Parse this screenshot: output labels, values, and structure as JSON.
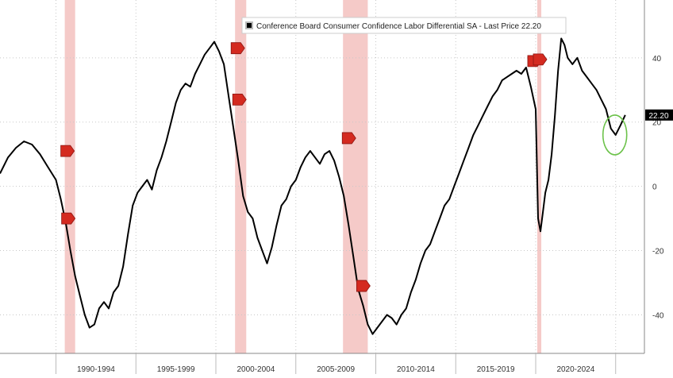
{
  "chart_data": {
    "type": "line",
    "legend": "Conference Board Consumer Confidence Labor Differential SA - Last Price 22.20",
    "last_price_label": "22.20",
    "y_ticks": [
      40,
      20,
      0,
      -20,
      -40
    ],
    "y_tick_labels": [
      "40",
      "20",
      "0",
      "-20",
      "-40"
    ],
    "ylim": [
      -52,
      58
    ],
    "xlim": [
      1986.5,
      2026.8
    ],
    "x_period_labels": [
      {
        "label": "1990-1994",
        "x": 1992.5
      },
      {
        "label": "1995-1999",
        "x": 1997.5
      },
      {
        "label": "2000-2004",
        "x": 2002.5
      },
      {
        "label": "2005-2009",
        "x": 2007.5
      },
      {
        "label": "2010-2014",
        "x": 2012.5
      },
      {
        "label": "2015-2019",
        "x": 2017.5
      },
      {
        "label": "2020-2024",
        "x": 2022.5
      }
    ],
    "x_separators": [
      1990,
      1995,
      2000,
      2005,
      2010,
      2015,
      2020,
      2025
    ],
    "recessions": [
      {
        "start": 1990.55,
        "end": 1991.2
      },
      {
        "start": 2001.2,
        "end": 2001.9
      },
      {
        "start": 2007.95,
        "end": 2009.5
      },
      {
        "start": 2020.1,
        "end": 2020.35
      }
    ],
    "series": [
      {
        "color": "#000000",
        "x": [
          1986.5,
          1987.0,
          1987.5,
          1988.0,
          1988.5,
          1989.0,
          1989.5,
          1990.0,
          1990.3,
          1990.6,
          1990.9,
          1991.2,
          1991.5,
          1991.8,
          1992.1,
          1992.4,
          1992.7,
          1993.0,
          1993.3,
          1993.6,
          1993.9,
          1994.2,
          1994.5,
          1994.8,
          1995.1,
          1995.4,
          1995.7,
          1996.0,
          1996.3,
          1996.6,
          1996.9,
          1997.2,
          1997.5,
          1997.8,
          1998.1,
          1998.4,
          1998.7,
          1999.0,
          1999.3,
          1999.6,
          1999.9,
          2000.2,
          2000.5,
          2000.8,
          2001.1,
          2001.4,
          2001.7,
          2002.0,
          2002.3,
          2002.6,
          2002.9,
          2003.2,
          2003.5,
          2003.8,
          2004.1,
          2004.4,
          2004.7,
          2005.0,
          2005.3,
          2005.6,
          2005.9,
          2006.2,
          2006.5,
          2006.8,
          2007.1,
          2007.4,
          2007.7,
          2008.0,
          2008.3,
          2008.6,
          2008.9,
          2009.2,
          2009.5,
          2009.8,
          2010.1,
          2010.4,
          2010.7,
          2011.0,
          2011.3,
          2011.6,
          2011.9,
          2012.2,
          2012.5,
          2012.8,
          2013.1,
          2013.4,
          2013.7,
          2014.0,
          2014.3,
          2014.6,
          2014.9,
          2015.2,
          2015.5,
          2015.8,
          2016.1,
          2016.4,
          2016.7,
          2017.0,
          2017.3,
          2017.6,
          2017.9,
          2018.2,
          2018.5,
          2018.8,
          2019.1,
          2019.4,
          2019.7,
          2020.0,
          2020.15,
          2020.3,
          2020.45,
          2020.6,
          2020.8,
          2021.0,
          2021.2,
          2021.4,
          2021.6,
          2021.8,
          2022.0,
          2022.3,
          2022.6,
          2022.9,
          2023.2,
          2023.5,
          2023.8,
          2024.1,
          2024.4,
          2024.7,
          2025.0,
          2025.3,
          2025.6
        ],
        "y": [
          4,
          9,
          12,
          14,
          13,
          10,
          6,
          2,
          -4,
          -11,
          -20,
          -28,
          -34,
          -40,
          -44,
          -43,
          -38,
          -36,
          -38,
          -33,
          -31,
          -25,
          -15,
          -6,
          -2,
          0,
          2,
          -1,
          5,
          9,
          14,
          20,
          26,
          30,
          32,
          31,
          35,
          38,
          41,
          43,
          45,
          42,
          38,
          28,
          18,
          8,
          -3,
          -8,
          -10,
          -16,
          -20,
          -24,
          -19,
          -12,
          -6,
          -4,
          0,
          2,
          6,
          9,
          11,
          9,
          7,
          10,
          11,
          8,
          3,
          -3,
          -12,
          -22,
          -32,
          -37,
          -43,
          -46,
          -44,
          -42,
          -40,
          -41,
          -43,
          -40,
          -38,
          -33,
          -29,
          -24,
          -20,
          -18,
          -14,
          -10,
          -6,
          -4,
          0,
          4,
          8,
          12,
          16,
          19,
          22,
          25,
          28,
          30,
          33,
          34,
          35,
          36,
          35,
          37,
          31,
          24,
          -10,
          -14,
          -8,
          -2,
          2,
          10,
          22,
          36,
          46,
          44,
          40,
          38,
          40,
          36,
          34,
          32,
          30,
          27,
          24,
          18,
          16,
          19,
          22.2
        ]
      }
    ],
    "markers": [
      {
        "x": 1990.7,
        "y": 11
      },
      {
        "x": 1990.75,
        "y": -10
      },
      {
        "x": 2001.35,
        "y": 43
      },
      {
        "x": 2001.45,
        "y": 27
      },
      {
        "x": 2008.3,
        "y": 15
      },
      {
        "x": 2009.2,
        "y": -31
      },
      {
        "x": 2019.9,
        "y": 39
      },
      {
        "x": 2020.25,
        "y": 39.5
      }
    ],
    "highlight_circle": {
      "x": 2024.95,
      "y": 16
    }
  }
}
